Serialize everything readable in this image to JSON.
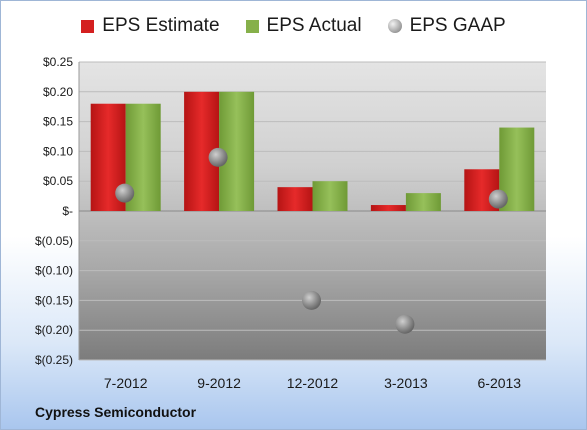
{
  "chart_data": {
    "type": "bar",
    "categories": [
      "7-2012",
      "9-2012",
      "12-2012",
      "3-2013",
      "6-2013"
    ],
    "series": [
      {
        "name": "EPS Estimate",
        "values": [
          0.18,
          0.2,
          0.04,
          0.01,
          0.07
        ],
        "color": "#d42020"
      },
      {
        "name": "EPS Actual",
        "values": [
          0.18,
          0.2,
          0.05,
          0.03,
          0.14
        ],
        "color": "#86b04a"
      }
    ],
    "scatter_series": {
      "name": "EPS GAAP",
      "values": [
        0.03,
        0.09,
        -0.15,
        -0.19,
        0.02
      ],
      "color": "#8a8a8a"
    },
    "ylim": [
      -0.25,
      0.25
    ],
    "yticks": [
      0.25,
      0.2,
      0.15,
      0.1,
      0.05,
      0,
      -0.05,
      -0.1,
      -0.15,
      -0.2,
      -0.25
    ],
    "ytick_labels": [
      "$0.25",
      "$0.20",
      "$0.15",
      "$0.10",
      "$0.05",
      "$-",
      "$(0.05)",
      "$(0.10)",
      "$(0.15)",
      "$(0.20)",
      "$(0.25)"
    ],
    "legend_position": "top",
    "grid": true
  },
  "footer": {
    "company": "Cypress Semiconductor"
  }
}
